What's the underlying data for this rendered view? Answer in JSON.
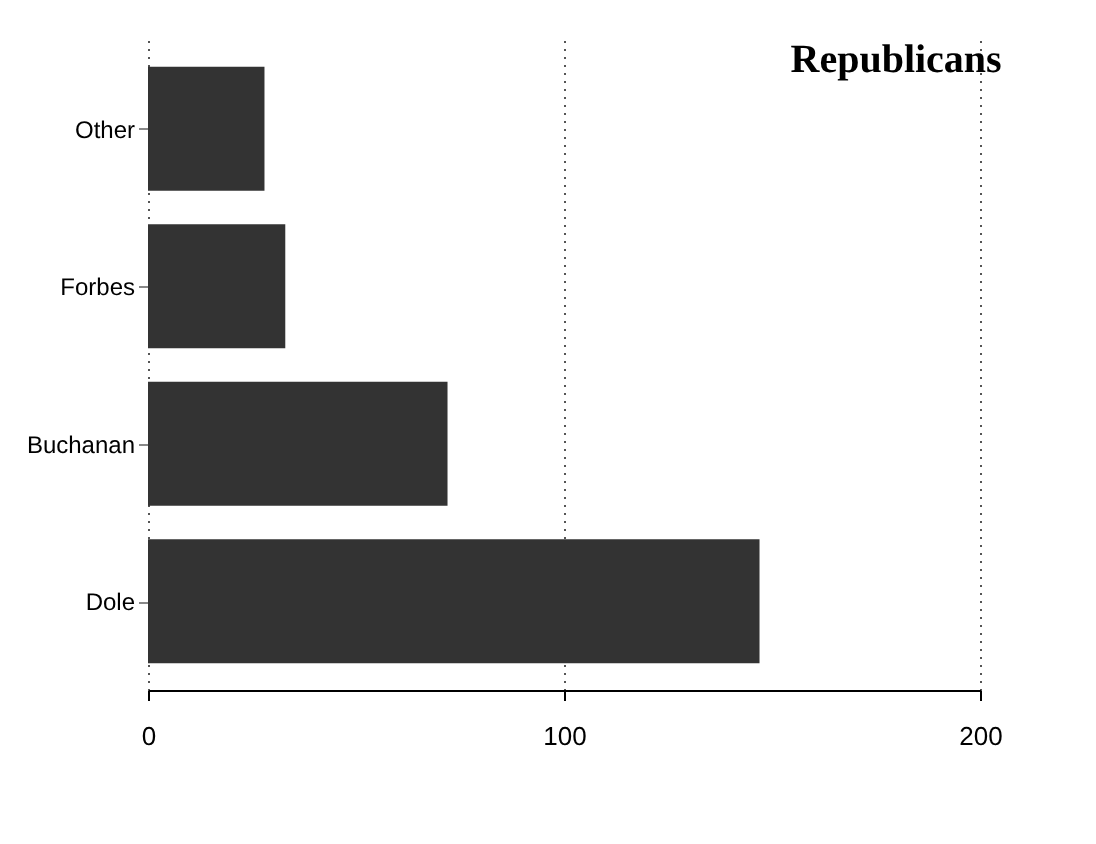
{
  "chart_data": {
    "type": "bar",
    "orientation": "horizontal",
    "title": "Republicans",
    "categories": [
      "Other",
      "Forbes",
      "Buchanan",
      "Dole"
    ],
    "values": [
      28,
      33,
      72,
      147
    ],
    "color": "#333333",
    "xlim": [
      0,
      200
    ],
    "xticks": [
      0,
      100,
      200
    ],
    "grid": "x"
  }
}
